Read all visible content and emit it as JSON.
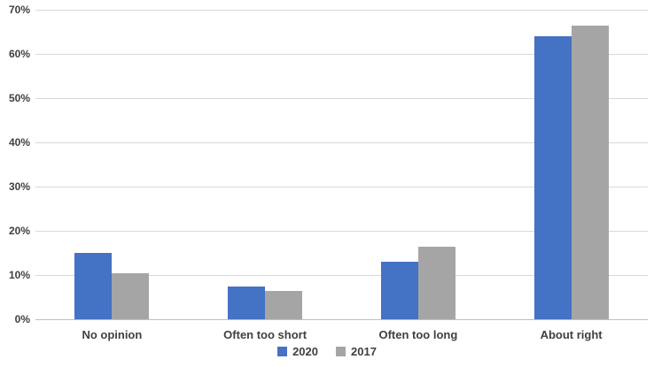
{
  "chart_data": {
    "type": "bar",
    "title": "",
    "xlabel": "",
    "ylabel": "",
    "categories": [
      "No opinion",
      "Often too short",
      "Often too long",
      "About right"
    ],
    "series": [
      {
        "name": "2020",
        "color": "#4472C4",
        "values": [
          15,
          7.5,
          13,
          64
        ]
      },
      {
        "name": "2017",
        "color": "#A5A5A5",
        "values": [
          10.5,
          6.5,
          16.5,
          66.5
        ]
      }
    ],
    "ylim": [
      0,
      70
    ],
    "ytick_step": 10,
    "ytick_labels": [
      "0%",
      "10%",
      "20%",
      "30%",
      "40%",
      "50%",
      "60%",
      "70%"
    ],
    "ytick_format": "percent",
    "grid": true,
    "legend_position": "bottom"
  },
  "colors": {
    "background": "#FFFFFF",
    "gridline": "#D9D9D9",
    "axis_line": "#BFBFBF",
    "label_text": "#404040"
  }
}
